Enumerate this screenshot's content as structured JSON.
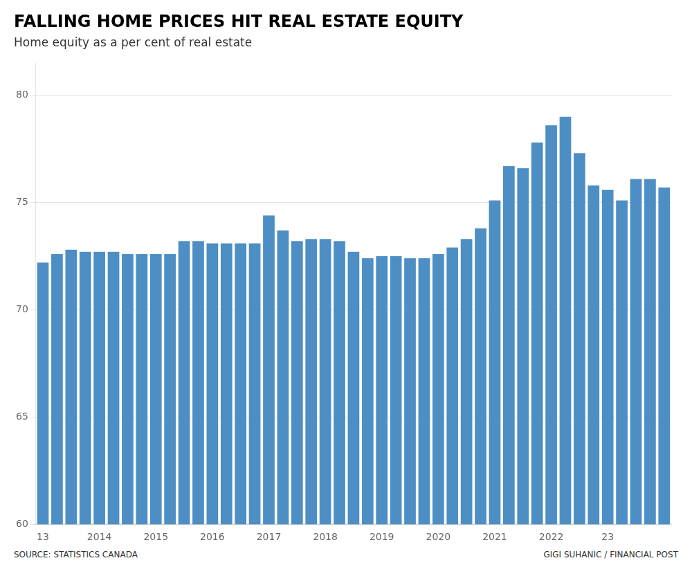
{
  "chart_data": {
    "type": "bar",
    "title": "FALLING HOME PRICES HIT REAL ESTATE EQUITY",
    "subtitle": "Home equity as a per cent of real estate",
    "annotations": [
      "SOURCE: STATISTICS CANADA",
      "GIGI SUHANIC / FINANCIAL POST"
    ],
    "categories": [
      "13",
      null,
      null,
      null,
      "2014",
      null,
      null,
      null,
      "2015",
      null,
      null,
      null,
      "2016",
      null,
      null,
      null,
      "2017",
      null,
      null,
      null,
      "2018",
      null,
      null,
      null,
      "2019",
      null,
      null,
      null,
      "2020",
      null,
      null,
      null,
      "2021",
      null,
      null,
      null,
      "2022",
      null,
      null,
      null,
      "23",
      null,
      null,
      null,
      null
    ],
    "values": [
      72.2,
      72.6,
      72.8,
      72.7,
      72.7,
      72.7,
      72.6,
      72.6,
      72.6,
      72.6,
      73.2,
      73.2,
      73.1,
      73.1,
      73.1,
      73.1,
      74.4,
      73.7,
      73.2,
      73.3,
      73.3,
      73.2,
      72.7,
      72.4,
      72.5,
      72.5,
      72.4,
      72.4,
      72.6,
      72.9,
      73.3,
      73.8,
      75.1,
      76.7,
      76.6,
      77.8,
      78.6,
      79.0,
      77.3,
      75.8,
      75.6,
      75.1,
      76.1,
      76.1,
      75.7
    ],
    "color": "#4d8fc4",
    "ylim": [
      60,
      81.5
    ],
    "yticks": [
      60,
      65,
      70,
      75,
      80
    ],
    "grid": true
  }
}
